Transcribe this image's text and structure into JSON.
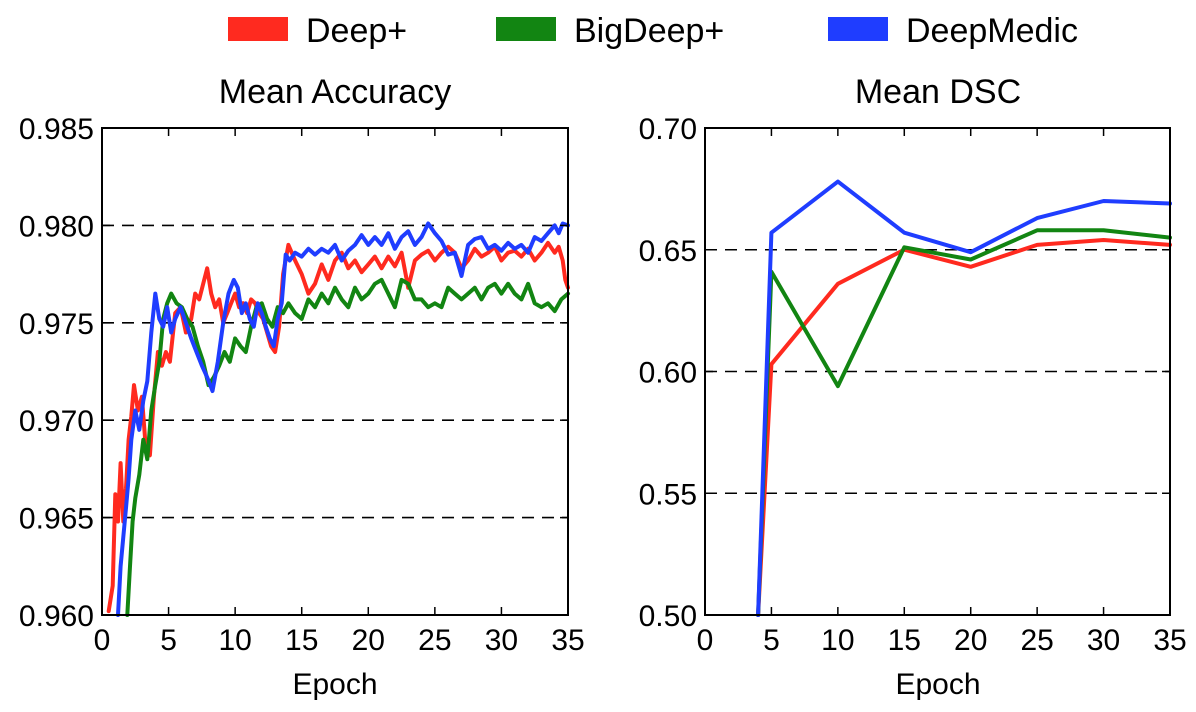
{
  "legend": {
    "placement": "top-center",
    "entries": [
      {
        "name": "Deep+",
        "color": "#ff2a1f"
      },
      {
        "name": "BigDeep+",
        "color": "#128512"
      },
      {
        "name": "DeepMedic",
        "color": "#1f3dff"
      }
    ]
  },
  "chart_data": [
    {
      "type": "line",
      "title": "Mean Accuracy",
      "xlabel": "Epoch",
      "ylabel": "",
      "xlim": [
        0,
        35
      ],
      "ylim": [
        0.96,
        0.985
      ],
      "xticks": [
        0,
        5,
        10,
        15,
        20,
        25,
        30,
        35
      ],
      "xtick_labels": [
        "0",
        "5",
        "10",
        "15",
        "20",
        "25",
        "30",
        "35"
      ],
      "yticks": [
        0.96,
        0.965,
        0.97,
        0.975,
        0.98,
        0.985
      ],
      "ytick_labels": [
        "0.960",
        "0.965",
        "0.970",
        "0.975",
        "0.980",
        "0.985"
      ],
      "dashed_gridlines_y": [
        0.965,
        0.97,
        0.975,
        0.98
      ],
      "series": [
        {
          "name": "Deep+",
          "color": "#ff2a1f",
          "x": [
            0.5,
            0.8,
            1.0,
            1.2,
            1.4,
            1.6,
            1.8,
            2.0,
            2.2,
            2.4,
            2.7,
            3.0,
            3.3,
            3.6,
            3.9,
            4.2,
            4.5,
            4.8,
            5.1,
            5.5,
            5.9,
            6.3,
            6.7,
            7.0,
            7.3,
            7.6,
            7.9,
            8.2,
            8.5,
            8.8,
            9.1,
            9.4,
            9.7,
            10.0,
            10.3,
            10.6,
            10.9,
            11.2,
            11.5,
            11.8,
            12.1,
            12.4,
            12.7,
            13.0,
            13.3,
            13.6,
            14.0,
            14.5,
            15.0,
            15.5,
            16.0,
            16.5,
            17.0,
            17.5,
            18.0,
            18.5,
            19.0,
            19.5,
            20.0,
            20.5,
            21.0,
            21.5,
            22.0,
            22.5,
            23.0,
            23.5,
            24.0,
            24.5,
            25.0,
            25.5,
            26.0,
            26.5,
            27.0,
            27.5,
            28.0,
            28.5,
            29.0,
            29.5,
            30.0,
            30.5,
            31.0,
            31.5,
            32.0,
            32.5,
            33.0,
            33.5,
            34.0,
            34.3,
            34.6,
            34.8,
            35.0
          ],
          "y": [
            0.9602,
            0.9615,
            0.9662,
            0.9648,
            0.9678,
            0.9648,
            0.9665,
            0.969,
            0.9702,
            0.9718,
            0.9705,
            0.9712,
            0.9685,
            0.9682,
            0.9712,
            0.9735,
            0.9728,
            0.9735,
            0.973,
            0.9755,
            0.9758,
            0.9745,
            0.9752,
            0.9765,
            0.9762,
            0.977,
            0.9778,
            0.9765,
            0.9758,
            0.9762,
            0.975,
            0.9755,
            0.976,
            0.9765,
            0.9758,
            0.976,
            0.9755,
            0.9762,
            0.976,
            0.9755,
            0.9752,
            0.9745,
            0.9738,
            0.9735,
            0.9748,
            0.9775,
            0.979,
            0.9782,
            0.9775,
            0.9765,
            0.977,
            0.978,
            0.9772,
            0.9782,
            0.9786,
            0.9778,
            0.9782,
            0.9776,
            0.978,
            0.9784,
            0.9778,
            0.9784,
            0.9779,
            0.9786,
            0.9768,
            0.9782,
            0.9785,
            0.9787,
            0.9782,
            0.9786,
            0.9789,
            0.9786,
            0.9778,
            0.9782,
            0.9788,
            0.9784,
            0.9786,
            0.9789,
            0.9782,
            0.9786,
            0.9787,
            0.9784,
            0.9788,
            0.9782,
            0.9786,
            0.9791,
            0.9786,
            0.9789,
            0.9782,
            0.9772,
            0.9768
          ]
        },
        {
          "name": "BigDeep+",
          "color": "#128512",
          "x": [
            1.9,
            2.1,
            2.3,
            2.5,
            2.8,
            3.1,
            3.4,
            3.7,
            4.0,
            4.3,
            4.6,
            4.9,
            5.2,
            5.6,
            6.0,
            6.4,
            6.8,
            7.2,
            7.6,
            8.0,
            8.4,
            8.8,
            9.2,
            9.6,
            10.0,
            10.4,
            10.8,
            11.2,
            11.6,
            12.0,
            12.4,
            12.8,
            13.2,
            13.6,
            14.0,
            14.5,
            15.0,
            15.5,
            16.0,
            16.5,
            17.0,
            17.5,
            18.0,
            18.5,
            19.0,
            19.5,
            20.0,
            20.5,
            21.0,
            21.5,
            22.0,
            22.5,
            23.0,
            23.5,
            24.0,
            24.5,
            25.0,
            25.5,
            26.0,
            26.5,
            27.0,
            27.5,
            28.0,
            28.5,
            29.0,
            29.5,
            30.0,
            30.5,
            31.0,
            31.5,
            32.0,
            32.5,
            33.0,
            33.5,
            34.0,
            34.5,
            35.0
          ],
          "y": [
            0.96,
            0.9625,
            0.9648,
            0.966,
            0.9672,
            0.969,
            0.968,
            0.9705,
            0.9718,
            0.973,
            0.9752,
            0.976,
            0.9765,
            0.976,
            0.9758,
            0.9752,
            0.9748,
            0.9738,
            0.973,
            0.9718,
            0.9722,
            0.9728,
            0.9735,
            0.973,
            0.9742,
            0.9738,
            0.9735,
            0.9748,
            0.9758,
            0.976,
            0.9752,
            0.9748,
            0.9758,
            0.9755,
            0.976,
            0.9755,
            0.9752,
            0.9762,
            0.9758,
            0.9765,
            0.976,
            0.9768,
            0.9762,
            0.9758,
            0.9768,
            0.9762,
            0.9765,
            0.977,
            0.9772,
            0.9765,
            0.9758,
            0.9772,
            0.977,
            0.9762,
            0.9762,
            0.9758,
            0.976,
            0.9758,
            0.9768,
            0.9765,
            0.9762,
            0.9765,
            0.9768,
            0.9762,
            0.9768,
            0.977,
            0.9765,
            0.977,
            0.9765,
            0.9762,
            0.977,
            0.976,
            0.9758,
            0.976,
            0.9756,
            0.9762,
            0.9765
          ]
        },
        {
          "name": "DeepMedic",
          "color": "#1f3dff",
          "x": [
            1.2,
            1.4,
            1.6,
            1.8,
            2.0,
            2.2,
            2.5,
            2.8,
            3.1,
            3.4,
            3.7,
            4.0,
            4.3,
            4.6,
            4.9,
            5.2,
            5.5,
            5.9,
            6.3,
            6.7,
            7.1,
            7.5,
            7.9,
            8.3,
            8.7,
            9.1,
            9.5,
            9.9,
            10.2,
            10.5,
            10.8,
            11.1,
            11.4,
            11.7,
            12.0,
            12.3,
            12.6,
            12.9,
            13.2,
            13.5,
            13.8,
            14.1,
            14.5,
            15.0,
            15.5,
            16.0,
            16.5,
            17.0,
            17.5,
            18.0,
            18.5,
            19.0,
            19.5,
            20.0,
            20.5,
            21.0,
            21.5,
            22.0,
            22.5,
            23.0,
            23.5,
            24.0,
            24.5,
            25.0,
            25.5,
            26.0,
            26.5,
            27.0,
            27.5,
            28.0,
            28.5,
            29.0,
            29.5,
            30.0,
            30.5,
            31.0,
            31.5,
            32.0,
            32.5,
            33.0,
            33.5,
            34.0,
            34.3,
            34.6,
            35.0
          ],
          "y": [
            0.96,
            0.9625,
            0.964,
            0.9655,
            0.967,
            0.969,
            0.9705,
            0.9695,
            0.971,
            0.972,
            0.9745,
            0.9765,
            0.9752,
            0.9748,
            0.9758,
            0.9745,
            0.9752,
            0.9758,
            0.975,
            0.9742,
            0.9735,
            0.9728,
            0.9722,
            0.9715,
            0.973,
            0.975,
            0.9765,
            0.9772,
            0.9768,
            0.9755,
            0.976,
            0.9752,
            0.9748,
            0.976,
            0.9755,
            0.9748,
            0.9742,
            0.9738,
            0.9752,
            0.976,
            0.9785,
            0.9782,
            0.9786,
            0.9784,
            0.9788,
            0.9785,
            0.9788,
            0.9786,
            0.979,
            0.9782,
            0.9787,
            0.979,
            0.9795,
            0.979,
            0.9794,
            0.979,
            0.9796,
            0.9788,
            0.9794,
            0.9797,
            0.979,
            0.9794,
            0.9801,
            0.9796,
            0.9792,
            0.9785,
            0.9786,
            0.9774,
            0.979,
            0.9793,
            0.9794,
            0.9788,
            0.979,
            0.9787,
            0.9791,
            0.9788,
            0.979,
            0.9786,
            0.9794,
            0.9792,
            0.9796,
            0.98,
            0.9796,
            0.9801,
            0.98
          ]
        }
      ]
    },
    {
      "type": "line",
      "title": "Mean DSC",
      "xlabel": "Epoch",
      "ylabel": "",
      "xlim": [
        0,
        35
      ],
      "ylim": [
        0.5,
        0.7
      ],
      "xticks": [
        0,
        5,
        10,
        15,
        20,
        25,
        30,
        35
      ],
      "xtick_labels": [
        "0",
        "5",
        "10",
        "15",
        "20",
        "25",
        "30",
        "35"
      ],
      "yticks": [
        0.5,
        0.55,
        0.6,
        0.65,
        0.7
      ],
      "ytick_labels": [
        "0.50",
        "0.55",
        "0.60",
        "0.65",
        "0.70"
      ],
      "dashed_gridlines_y": [
        0.55,
        0.6,
        0.65
      ],
      "series": [
        {
          "name": "Deep+",
          "color": "#ff2a1f",
          "x": [
            4,
            5,
            10,
            15,
            20,
            25,
            30,
            35
          ],
          "y": [
            0.5,
            0.603,
            0.636,
            0.65,
            0.643,
            0.652,
            0.654,
            0.652
          ]
        },
        {
          "name": "BigDeep+",
          "color": "#128512",
          "x": [
            4,
            5,
            10,
            15,
            20,
            25,
            30,
            35
          ],
          "y": [
            0.5,
            0.641,
            0.594,
            0.651,
            0.646,
            0.658,
            0.658,
            0.655
          ]
        },
        {
          "name": "DeepMedic",
          "color": "#1f3dff",
          "x": [
            4,
            5,
            10,
            15,
            20,
            25,
            30,
            35
          ],
          "y": [
            0.5,
            0.657,
            0.678,
            0.657,
            0.649,
            0.663,
            0.67,
            0.669
          ]
        }
      ]
    }
  ]
}
